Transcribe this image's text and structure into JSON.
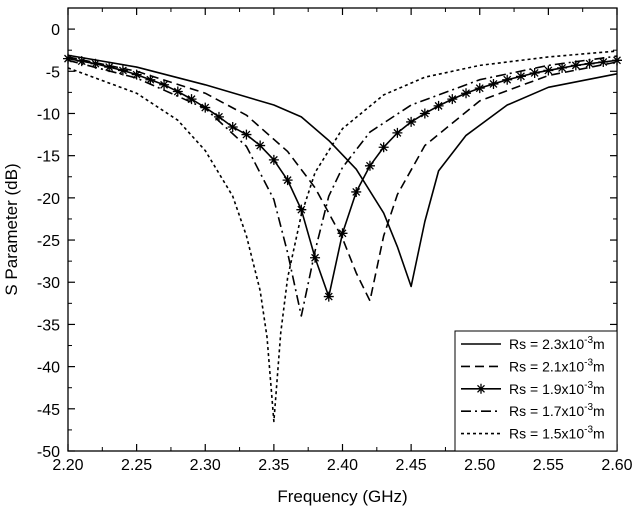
{
  "chart_data": {
    "type": "line",
    "xlabel": "Frequency (GHz)",
    "ylabel": "S Parameter (dB)",
    "xlim": [
      2.2,
      2.6
    ],
    "ylim": [
      -50,
      2.5
    ],
    "xticks": [
      "2.20",
      "2.25",
      "2.30",
      "2.35",
      "2.40",
      "2.45",
      "2.50",
      "2.55",
      "2.60"
    ],
    "yticks": [
      "0",
      "-5",
      "-10",
      "-15",
      "-20",
      "-25",
      "-30",
      "-35",
      "-40",
      "-45",
      "-50"
    ],
    "grid": false,
    "legend_position": "bottom-right",
    "series": [
      {
        "name": "Rs = 2.3x10⁻³m",
        "legend_prefix": "Rs = 2.3x10",
        "legend_exp": "-3",
        "legend_suffix": "m",
        "style": "solid",
        "x": [
          2.2,
          2.25,
          2.3,
          2.35,
          2.37,
          2.39,
          2.41,
          2.43,
          2.44,
          2.45,
          2.46,
          2.47,
          2.49,
          2.52,
          2.55,
          2.6
        ],
        "y": [
          -3.1,
          -4.5,
          -6.6,
          -9.0,
          -10.4,
          -13.2,
          -16.6,
          -21.8,
          -25.8,
          -30.5,
          -22.8,
          -16.8,
          -12.6,
          -9.0,
          -6.9,
          -5.3
        ]
      },
      {
        "name": "Rs = 2.1x10⁻³m",
        "legend_prefix": "Rs = 2.1x10",
        "legend_exp": "-3",
        "legend_suffix": "m",
        "style": "dash",
        "x": [
          2.2,
          2.25,
          2.3,
          2.33,
          2.36,
          2.38,
          2.4,
          2.41,
          2.42,
          2.43,
          2.44,
          2.46,
          2.5,
          2.55,
          2.6
        ],
        "y": [
          -3.3,
          -5.0,
          -7.6,
          -10.2,
          -14.5,
          -18.8,
          -24.8,
          -28.9,
          -32.2,
          -24.5,
          -19.6,
          -13.8,
          -8.5,
          -5.5,
          -3.9
        ]
      },
      {
        "name": "Rs = 1.9x10⁻³m",
        "legend_prefix": "Rs = 1.9x10",
        "legend_exp": "-3",
        "legend_suffix": "m",
        "style": "star",
        "x": [
          2.2,
          2.21,
          2.22,
          2.23,
          2.24,
          2.25,
          2.26,
          2.27,
          2.28,
          2.29,
          2.3,
          2.31,
          2.32,
          2.33,
          2.34,
          2.35,
          2.36,
          2.37,
          2.38,
          2.39,
          2.4,
          2.41,
          2.42,
          2.43,
          2.44,
          2.45,
          2.46,
          2.47,
          2.48,
          2.49,
          2.5,
          2.51,
          2.52,
          2.53,
          2.54,
          2.55,
          2.56,
          2.57,
          2.58,
          2.59,
          2.6
        ],
        "y": [
          -3.5,
          -3.8,
          -4.1,
          -4.5,
          -4.9,
          -5.4,
          -6.0,
          -6.6,
          -7.4,
          -8.3,
          -9.3,
          -10.4,
          -11.6,
          -12.5,
          -13.8,
          -15.5,
          -17.9,
          -21.4,
          -27.1,
          -31.7,
          -24.2,
          -19.3,
          -16.2,
          -14.0,
          -12.3,
          -11.0,
          -10.0,
          -9.1,
          -8.3,
          -7.6,
          -7.0,
          -6.5,
          -6.0,
          -5.6,
          -5.2,
          -4.9,
          -4.6,
          -4.3,
          -4.1,
          -3.9,
          -3.7
        ]
      },
      {
        "name": "Rs = 1.7x10⁻³m",
        "legend_prefix": "Rs = 1.7x10",
        "legend_exp": "-3",
        "legend_suffix": "m",
        "style": "dashdot",
        "x": [
          2.2,
          2.25,
          2.3,
          2.33,
          2.35,
          2.36,
          2.37,
          2.38,
          2.39,
          2.4,
          2.42,
          2.45,
          2.5,
          2.55,
          2.6
        ],
        "y": [
          -3.7,
          -5.8,
          -9.4,
          -13.9,
          -20.2,
          -26.5,
          -34.0,
          -26.3,
          -19.8,
          -16.4,
          -12.2,
          -9.0,
          -6.0,
          -4.3,
          -3.2
        ]
      },
      {
        "name": "Rs = 1.5x10⁻³m",
        "legend_prefix": "Rs = 1.5x10",
        "legend_exp": "-3",
        "legend_suffix": "m",
        "style": "dot",
        "x": [
          2.2,
          2.25,
          2.28,
          2.3,
          2.32,
          2.33,
          2.34,
          2.345,
          2.35,
          2.355,
          2.36,
          2.37,
          2.38,
          2.4,
          2.43,
          2.46,
          2.5,
          2.55,
          2.6
        ],
        "y": [
          -4.6,
          -7.6,
          -10.8,
          -14.4,
          -19.8,
          -24.5,
          -31.0,
          -36.5,
          -46.5,
          -36.0,
          -29.5,
          -22.0,
          -17.0,
          -11.8,
          -7.8,
          -5.7,
          -4.3,
          -3.3,
          -2.6
        ]
      }
    ]
  }
}
